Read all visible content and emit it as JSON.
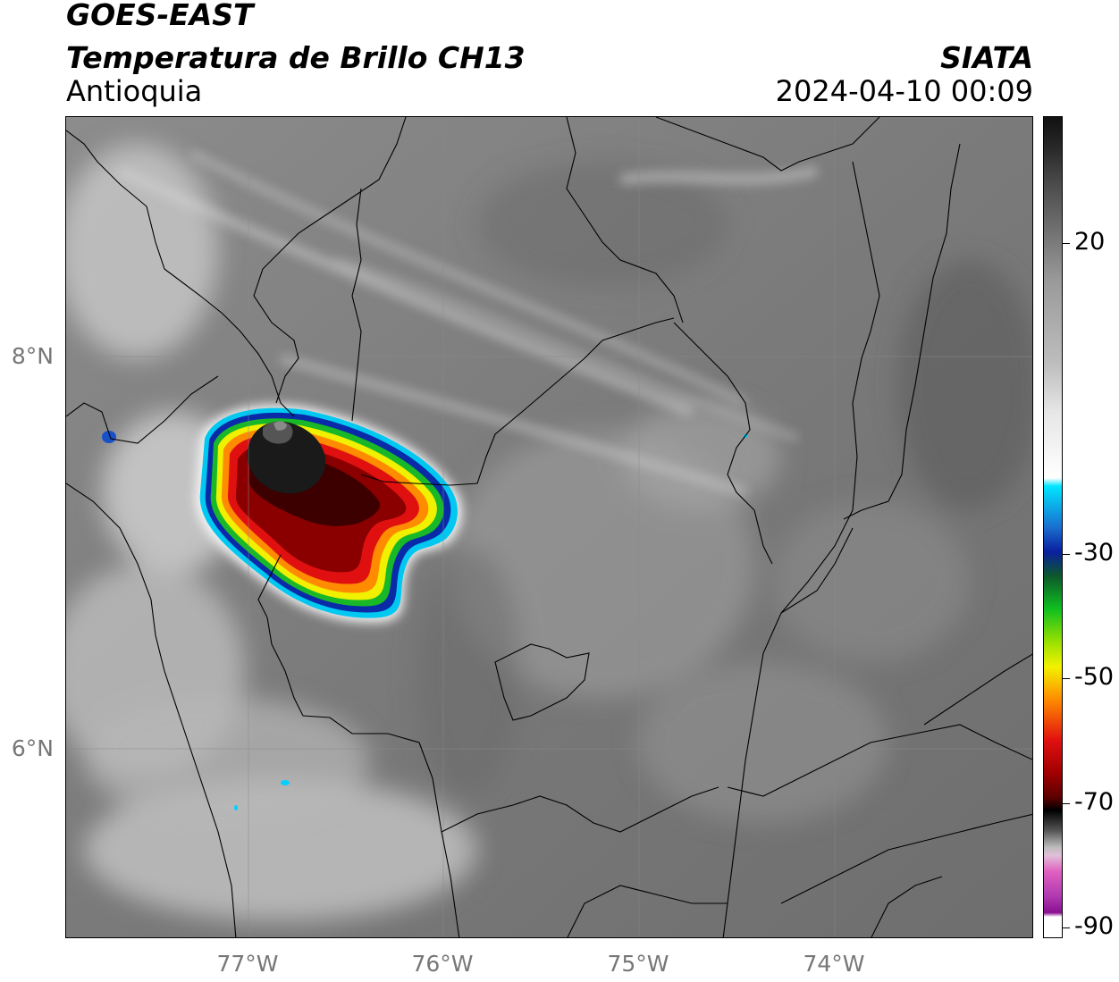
{
  "header": {
    "satellite": "GOES-EAST",
    "product": "Temperatura de Brillo CH13",
    "region": "Antioquia",
    "organization": "SIATA",
    "timestamp": "2024-04-10 00:09"
  },
  "map": {
    "lat_labels": [
      "8°N",
      "6°N"
    ],
    "lon_labels": [
      "77°W",
      "76°W",
      "75°W",
      "74°W"
    ]
  },
  "colorbar": {
    "tick_labels": [
      "20",
      "-30",
      "-50",
      "-70",
      "-90"
    ],
    "colors": {
      "warm_gray": "#9a9a9a",
      "white": "#ffffff",
      "cyan": "#00e5ff",
      "blue": "#0a1f9e",
      "green": "#10c020",
      "yellow": "#f2f200",
      "orange": "#ff8c00",
      "red": "#e01010",
      "dark_red": "#5a0000",
      "black": "#000000",
      "pink": "#e060c0",
      "purple": "#8a1090"
    }
  }
}
